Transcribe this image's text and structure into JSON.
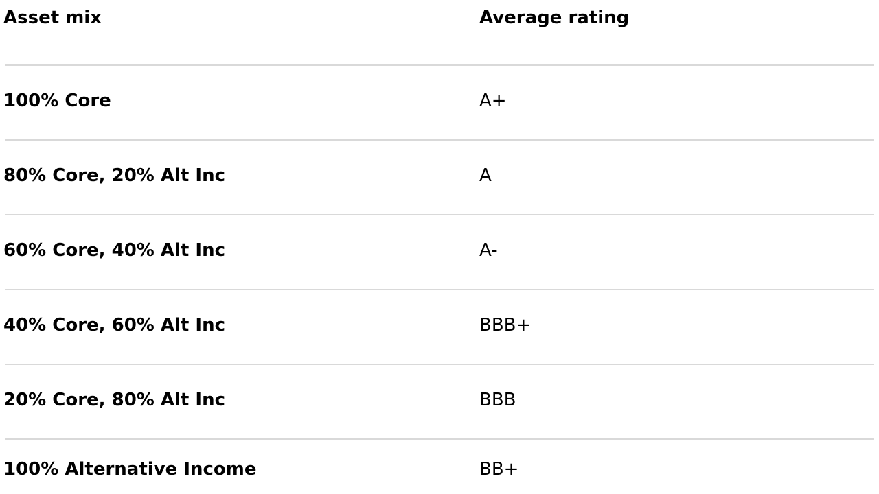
{
  "table": {
    "headers": {
      "asset_mix": "Asset mix",
      "average_rating": "Average rating"
    },
    "rows": [
      {
        "asset_mix": "100% Core",
        "average_rating": "A+"
      },
      {
        "asset_mix": "80% Core, 20% Alt Inc",
        "average_rating": "A"
      },
      {
        "asset_mix": "60% Core, 40% Alt Inc",
        "average_rating": "A-"
      },
      {
        "asset_mix": "40% Core, 60% Alt Inc",
        "average_rating": "BBB+"
      },
      {
        "asset_mix": "20% Core, 80% Alt Inc",
        "average_rating": "BBB"
      },
      {
        "asset_mix": "100% Alternative Income",
        "average_rating": "BB+"
      }
    ]
  },
  "colors": {
    "text": "#000000",
    "divider": "#d9d9d9",
    "background": "#ffffff"
  }
}
